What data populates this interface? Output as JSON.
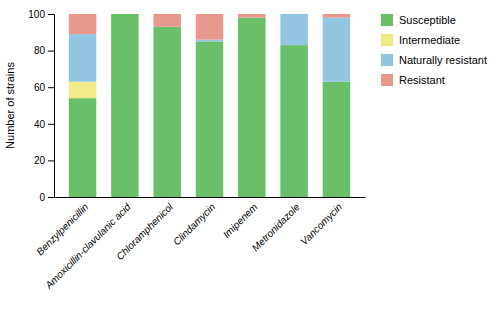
{
  "chart_data": {
    "type": "bar",
    "stacked": true,
    "categories": [
      "Benzylpenicillin",
      "Amoxicillin-clavulanic acid",
      "Chloramphenicol",
      "Clindamycin",
      "Imipenem",
      "Metronidazole",
      "Vancomycin"
    ],
    "series": [
      {
        "name": "Susceptible",
        "color": "#6abf69",
        "values": [
          54,
          100,
          93,
          85,
          98,
          83,
          63
        ]
      },
      {
        "name": "Intermediate",
        "color": "#f0ea8a",
        "values": [
          9,
          0,
          0,
          0,
          0,
          0,
          0
        ]
      },
      {
        "name": "Naturally resistant",
        "color": "#93c6e0",
        "values": [
          26,
          0,
          0,
          1,
          0,
          17,
          35
        ]
      },
      {
        "name": "Resistant",
        "color": "#e8998d",
        "values": [
          11,
          0,
          7,
          14,
          2,
          0,
          2
        ]
      }
    ],
    "ylabel": "Number of strains",
    "ylim": [
      0,
      100
    ],
    "yticks": [
      0,
      20,
      40,
      60,
      80,
      100
    ],
    "grid": false,
    "legend": "right"
  }
}
